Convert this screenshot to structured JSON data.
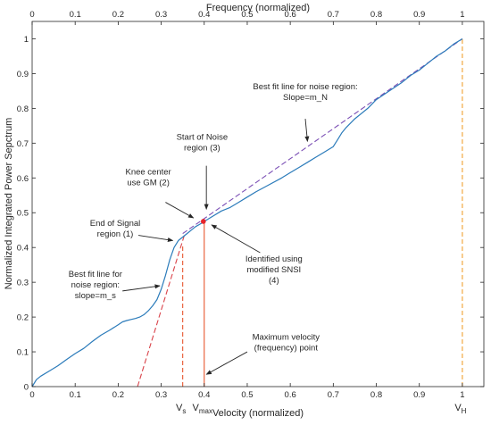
{
  "chart_data": {
    "type": "line",
    "title": "",
    "xlabel": "Velocity (normalized)",
    "x2label": "Frequency (normalized)",
    "ylabel": "Normalized Integrated Power Sepctrum",
    "xlim": [
      0,
      1.05
    ],
    "ylim": [
      0,
      1.05
    ],
    "xticks": [
      0,
      0.1,
      0.2,
      0.3,
      0.4,
      0.5,
      0.6,
      0.7,
      0.8,
      0.9,
      1
    ],
    "yticks": [
      0,
      0.1,
      0.2,
      0.3,
      0.4,
      0.5,
      0.6,
      0.7,
      0.8,
      0.9,
      1
    ],
    "xtick_labels": [
      "0",
      "0.1",
      "0.2",
      "0.3",
      "0.4",
      "0.5",
      "0.6",
      "0.7",
      "0.8",
      "0.9",
      "1"
    ],
    "ytick_labels": [
      "0",
      "0.1",
      "0.2",
      "0.3",
      "0.4",
      "0.5",
      "0.6",
      "0.7",
      "0.8",
      "0.9",
      "1"
    ],
    "grid": false,
    "colors": {
      "curve": "#2b7bba",
      "signal_fit": "#d9434a",
      "noise_fit": "#7b4fb5",
      "vs_line": "#e8562e",
      "vmax_line": "#e8562e",
      "vh_line": "#f0a030",
      "knee_marker": "#e8242a",
      "annotation": "#262626"
    },
    "curve": {
      "x": [
        0,
        0.01,
        0.02,
        0.04,
        0.06,
        0.08,
        0.1,
        0.12,
        0.14,
        0.16,
        0.18,
        0.2,
        0.21,
        0.22,
        0.23,
        0.24,
        0.25,
        0.26,
        0.27,
        0.28,
        0.29,
        0.3,
        0.31,
        0.32,
        0.33,
        0.34,
        0.35,
        0.36,
        0.37,
        0.38,
        0.39,
        0.4,
        0.42,
        0.44,
        0.46,
        0.48,
        0.5,
        0.52,
        0.55,
        0.58,
        0.6,
        0.62,
        0.64,
        0.66,
        0.68,
        0.7,
        0.71,
        0.72,
        0.73,
        0.75,
        0.78,
        0.8,
        0.83,
        0.86,
        0.88,
        0.9,
        0.92,
        0.94,
        0.96,
        0.98,
        1.0
      ],
      "y": [
        0,
        0.02,
        0.03,
        0.045,
        0.06,
        0.078,
        0.095,
        0.11,
        0.13,
        0.148,
        0.162,
        0.178,
        0.186,
        0.19,
        0.193,
        0.196,
        0.2,
        0.207,
        0.218,
        0.232,
        0.25,
        0.28,
        0.32,
        0.365,
        0.4,
        0.42,
        0.43,
        0.44,
        0.45,
        0.46,
        0.467,
        0.475,
        0.49,
        0.505,
        0.515,
        0.53,
        0.545,
        0.56,
        0.58,
        0.6,
        0.615,
        0.63,
        0.645,
        0.66,
        0.675,
        0.69,
        0.71,
        0.73,
        0.745,
        0.77,
        0.8,
        0.825,
        0.85,
        0.875,
        0.895,
        0.91,
        0.93,
        0.95,
        0.965,
        0.985,
        1.0
      ]
    },
    "signal_fit": {
      "x": [
        0.245,
        0.355
      ],
      "y": [
        0,
        0.44
      ]
    },
    "noise_fit": {
      "x": [
        0.35,
        1.0
      ],
      "y": [
        0.44,
        1.0
      ]
    },
    "vlines": [
      {
        "name": "Vs",
        "x": 0.35,
        "y": 0.41,
        "label": "V",
        "sub": "s"
      },
      {
        "name": "Vmax",
        "x": 0.4,
        "y": 0.47,
        "label": "V",
        "sub": "max"
      },
      {
        "name": "VH",
        "x": 1.0,
        "y": 1.0,
        "label": "V",
        "sub": "H"
      }
    ],
    "knee_point": {
      "x": 0.398,
      "y": 0.475
    },
    "annotations": [
      {
        "name": "noise-fit",
        "lines": [
          "Best fit line for noise region:",
          "Slope=m_N"
        ],
        "text_x": 0.635,
        "text_y": 0.855,
        "arrow": [
          0.635,
          0.77,
          0.64,
          0.705
        ]
      },
      {
        "name": "start-noise",
        "lines": [
          "Start of Noise",
          "region (3)"
        ],
        "text_x": 0.395,
        "text_y": 0.71,
        "arrow": [
          0.405,
          0.635,
          0.405,
          0.51
        ]
      },
      {
        "name": "knee-center",
        "lines": [
          "Knee center",
          "use GM (2)"
        ],
        "text_x": 0.27,
        "text_y": 0.61,
        "arrow": [
          0.31,
          0.53,
          0.375,
          0.485
        ]
      },
      {
        "name": "end-signal",
        "lines": [
          "End of Signal",
          "region (1)"
        ],
        "text_x": 0.193,
        "text_y": 0.462,
        "arrow": [
          0.247,
          0.435,
          0.327,
          0.42
        ]
      },
      {
        "name": "identified",
        "lines": [
          "Identified using",
          "modified SNSI",
          "(4)"
        ],
        "text_x": 0.562,
        "text_y": 0.36,
        "arrow": [
          0.53,
          0.385,
          0.417,
          0.465
        ]
      },
      {
        "name": "signal-fit",
        "lines": [
          "Best fit line for",
          "noise region:",
          "slope=m_s"
        ],
        "text_x": 0.147,
        "text_y": 0.316,
        "arrow": [
          0.21,
          0.275,
          0.297,
          0.29
        ]
      },
      {
        "name": "max-velocity",
        "lines": [
          "Maximum velocity",
          "(frequency) point"
        ],
        "text_x": 0.59,
        "text_y": 0.135,
        "arrow": [
          0.5,
          0.1,
          0.405,
          0.035
        ]
      }
    ]
  }
}
